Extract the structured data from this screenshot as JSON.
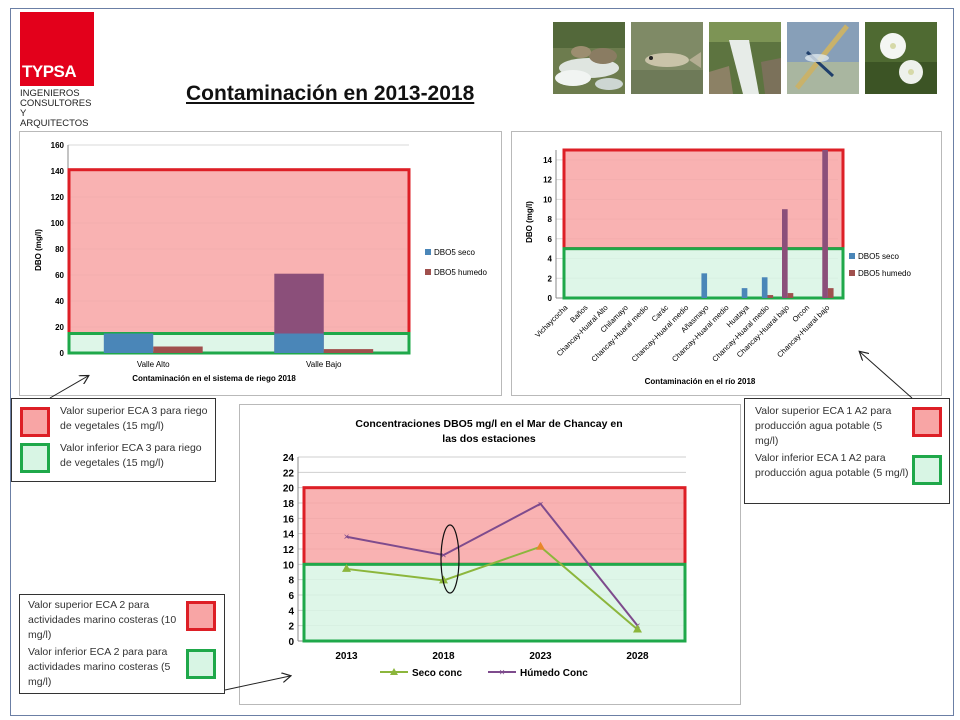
{
  "logo": {
    "brand": "TYPSA",
    "line1": "INGENIEROS",
    "line2": "CONSULTORES",
    "line3": "Y ARQUITECTOS",
    "brand_color": "#e3001b"
  },
  "title": "Contaminación en 2013-2018",
  "colors": {
    "seco": "#4a86b8",
    "humedo": "#a0504d",
    "overlap": "#8b4f7a",
    "red_zone": "#f8a5a5",
    "red_border": "#dd1f26",
    "green_zone": "#d8f5e4",
    "green_border": "#1fa84a",
    "line_seco": "#8cb63c",
    "line_humedo": "#7e4b8d",
    "orange_point": "#e8862a"
  },
  "chart_data": [
    {
      "type": "bar",
      "categories": [
        "Valle Alto",
        "Valle Bajo"
      ],
      "series": [
        {
          "name": "DBO5 seco",
          "values": [
            15,
            15
          ]
        },
        {
          "name": "DBO5 humedo",
          "values": [
            5,
            3
          ]
        }
      ],
      "overlap_values": [
        null,
        61
      ],
      "xlabel": "Contaminación en el sistema de riego 2018",
      "ylabel": "DBO (mg/l)",
      "ylim": [
        0,
        160
      ],
      "yticks": [
        0,
        20,
        40,
        60,
        80,
        100,
        120,
        140,
        160
      ],
      "legend": "right",
      "zones": {
        "red_top": 141,
        "green_top": 15
      }
    },
    {
      "type": "bar",
      "categories": [
        "Vichaycocha",
        "Baños",
        "Chancay-Huaral Alto",
        "Chilamayo",
        "Chancay-Huaral medio",
        "Carác",
        "Chancay-Huaral medio",
        "Añasmayo",
        "Chancay-Huaral medio",
        "Huataya",
        "Chancay-Huaral medio",
        "Chancay-Huaral bajo",
        "Orcon",
        "Chancay-Huaral bajo"
      ],
      "series": [
        {
          "name": "DBO5 seco",
          "values": [
            0,
            0,
            0,
            0,
            0,
            0,
            0,
            2.5,
            0,
            1.0,
            2.1,
            0,
            0,
            0
          ]
        },
        {
          "name": "DBO5 humedo",
          "values": [
            0,
            0,
            0,
            0,
            0,
            0,
            0,
            0,
            0,
            0,
            0.3,
            0.5,
            0,
            1.0
          ]
        }
      ],
      "overlap_values": [
        null,
        null,
        null,
        null,
        null,
        null,
        null,
        null,
        null,
        null,
        null,
        9,
        null,
        15
      ],
      "xlabel": "Contaminación en el río 2018",
      "ylabel": "DBO (mg/l)",
      "ylim": [
        0,
        15
      ],
      "yticks": [
        0,
        2,
        4,
        6,
        8,
        10,
        12,
        14
      ],
      "legend": "right",
      "zones": {
        "red_top": 15,
        "green_top": 5
      }
    },
    {
      "type": "line",
      "title_line1": "Concentraciones DBO5 mg/l en el Mar de Chancay en",
      "title_line2": "las dos estaciones",
      "categories": [
        "2013",
        "2018",
        "2023",
        "2028"
      ],
      "series": [
        {
          "name": "Seco conc",
          "values": [
            9.4,
            7.9,
            12.3,
            1.5
          ]
        },
        {
          "name": "Húmedo Conc",
          "values": [
            13.6,
            11.2,
            17.9,
            2.0
          ]
        }
      ],
      "ylim": [
        0,
        24
      ],
      "yticks": [
        0,
        2,
        4,
        6,
        8,
        10,
        12,
        14,
        16,
        18,
        20,
        22,
        24
      ],
      "legend": "bottom",
      "zones": {
        "red_top": 20,
        "green_top": 10
      }
    }
  ],
  "legends": {
    "left": {
      "red": "Valor superior ECA 3 para riego de vegetales (15 mg/l)",
      "green": "Valor inferior ECA 3 para riego de vegetales (15 mg/l)"
    },
    "right": {
      "red": "Valor superior ECA 1 A2 para producción agua potable (5 mg/l)",
      "green": "Valor inferior ECA 1 A2 para producción agua potable (5 mg/l)"
    },
    "bottom": {
      "red": "Valor superior ECA 2 para actividades marino costeras (10 mg/l)",
      "green": "Valor inferior ECA 2 para para actividades marino costeras (5 mg/l)"
    }
  }
}
